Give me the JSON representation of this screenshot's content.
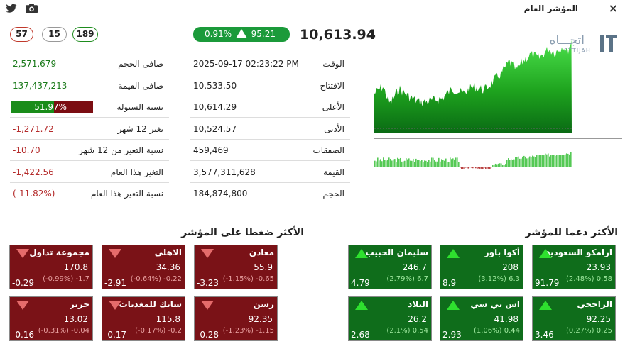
{
  "window": {
    "title": "المؤشر العام",
    "close_icon": "×"
  },
  "breadth": {
    "declining": "57",
    "unchanged": "15",
    "advancing": "189"
  },
  "index": {
    "change_percent": "0.91%",
    "change_points": "95.21",
    "value": "10,613.94",
    "direction": "up"
  },
  "stats_left": [
    {
      "label": "صافى الحجم",
      "value": "2,571,679",
      "tone": "green"
    },
    {
      "label": "صافى القيمة",
      "value": "137,437,213",
      "tone": "green"
    },
    {
      "label": "نسبة السيولة",
      "value": "51.97%",
      "tone": "liquidity",
      "fraction": 0.5197
    },
    {
      "label": "تغير 12 شهر",
      "value": "-1,271.72",
      "tone": "red"
    },
    {
      "label": "نسبة التغير من 12 شهر",
      "value": "-10.70",
      "tone": "red"
    },
    {
      "label": "التغير هذا العام",
      "value": "-1,422.56",
      "tone": "red"
    },
    {
      "label": "نسبة التغير هذا العام",
      "value": "(-11.82%)",
      "tone": "red"
    }
  ],
  "stats_mid": [
    {
      "label": "الوقت",
      "value": "2025-09-17  02:23:22 PM"
    },
    {
      "label": "الافتتاح",
      "value": "10,533.50"
    },
    {
      "label": "الأعلى",
      "value": "10,614.29"
    },
    {
      "label": "الأدنى",
      "value": "10,524.57"
    },
    {
      "label": "الصفقات",
      "value": "459,469"
    },
    {
      "label": "القيمة",
      "value": "3,577,311,628"
    },
    {
      "label": "الحجم",
      "value": "184,874,800"
    }
  ],
  "chart": {
    "logo_text": "اتجـــاه",
    "logo_sub": "ETTIJAH",
    "colors": {
      "up": "#22a322",
      "down": "#c0392b"
    }
  },
  "sections": {
    "supporting_title": "الأكثر دعما للمؤشر",
    "pressuring_title": "الأكثر ضغطا على المؤشر"
  },
  "supporting": [
    {
      "name": "ارامكو السعودية",
      "price": "23.93",
      "change": "(2.48%) 0.58",
      "impact": "91.79"
    },
    {
      "name": "أكوا باور",
      "price": "208",
      "change": "(3.12%) 6.3",
      "impact": "8.9"
    },
    {
      "name": "سليمان الحبيب",
      "price": "246.7",
      "change": "(2.79%) 6.7",
      "impact": "4.79"
    },
    {
      "name": "الراجحي",
      "price": "92.25",
      "change": "(0.27%) 0.25",
      "impact": "3.46"
    },
    {
      "name": "اس تي سي",
      "price": "41.98",
      "change": "(1.06%) 0.44",
      "impact": "2.93"
    },
    {
      "name": "البلاد",
      "price": "26.2",
      "change": "(2.1%) 0.54",
      "impact": "2.68"
    }
  ],
  "pressuring": [
    {
      "name": "معادن",
      "price": "55.9",
      "change": "(-1.15%) -0.65",
      "impact": "-3.23"
    },
    {
      "name": "الاهلي",
      "price": "34.36",
      "change": "(-0.64%) -0.22",
      "impact": "-2.91"
    },
    {
      "name": "مجموعة تداول",
      "price": "170.8",
      "change": "(-0.99%) -1.7",
      "impact": "-0.29"
    },
    {
      "name": "رسن",
      "price": "92.35",
      "change": "(-1.23%) -1.15",
      "impact": "-0.28"
    },
    {
      "name": "سابك للمغذيات الزراعية",
      "price": "115.8",
      "change": "(-0.17%) -0.2",
      "impact": "-0.17"
    },
    {
      "name": "جرير",
      "price": "13.02",
      "change": "(-0.31%) -0.04",
      "impact": "-0.16"
    }
  ]
}
